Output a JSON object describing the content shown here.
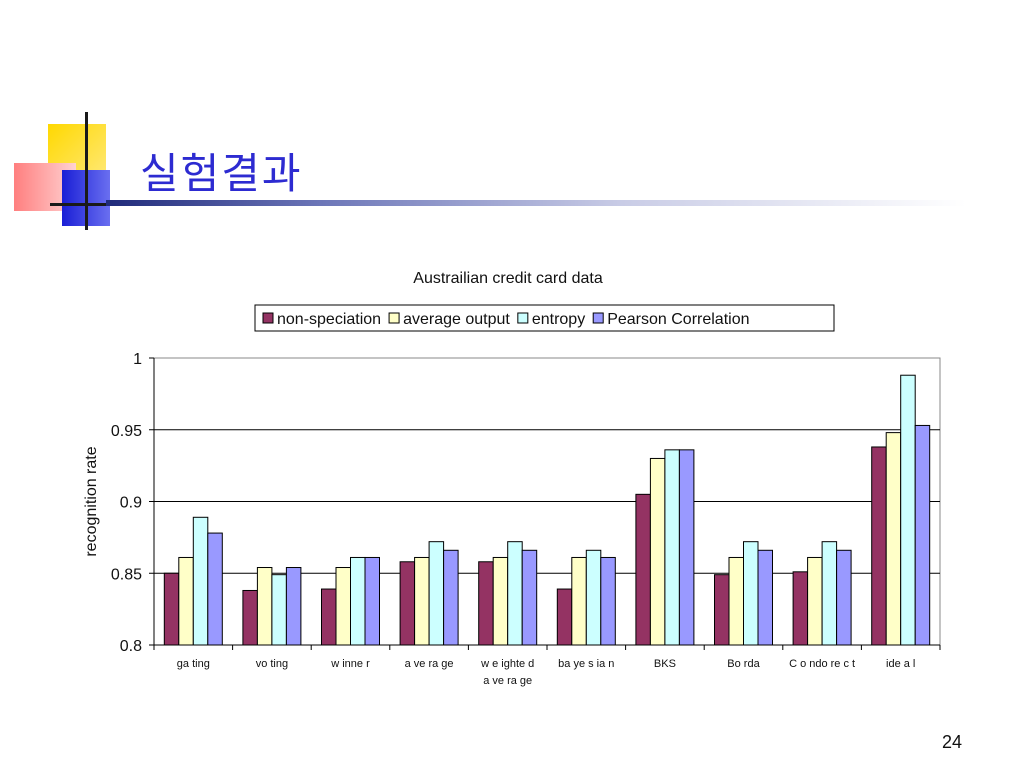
{
  "slide": {
    "title": "실험결과",
    "page_number": "24"
  },
  "colors": {
    "title": "#2d2bd1",
    "series": [
      "#943363",
      "#ffffc8",
      "#ccffff",
      "#9999ff"
    ]
  },
  "chart_data": {
    "type": "bar",
    "title": "Austrailian credit card data",
    "xlabel": "",
    "ylabel": "recognition rate",
    "ylim": [
      0.8,
      1
    ],
    "yticks": [
      0.8,
      0.85,
      0.9,
      0.95,
      1
    ],
    "ytick_labels": [
      "0.8",
      "0.85",
      "0.9",
      "0.95",
      "1"
    ],
    "grid": true,
    "legend_position": "top",
    "categories": [
      "ga ting",
      "vo ting",
      "w inne r",
      "a ve ra ge",
      "w e ighte d\na ve ra ge",
      "ba ye s ia n",
      "BKS",
      "Bo rda",
      "C o ndo re c t",
      "ide a l"
    ],
    "series": [
      {
        "name": "non-speciation",
        "values": [
          0.85,
          0.838,
          0.839,
          0.858,
          0.858,
          0.839,
          0.905,
          0.849,
          0.851,
          0.938
        ]
      },
      {
        "name": "average output",
        "values": [
          0.861,
          0.854,
          0.854,
          0.861,
          0.861,
          0.861,
          0.93,
          0.861,
          0.861,
          0.948
        ]
      },
      {
        "name": "entropy",
        "values": [
          0.889,
          0.849,
          0.861,
          0.872,
          0.872,
          0.866,
          0.936,
          0.872,
          0.872,
          0.988
        ]
      },
      {
        "name": "Pearson Correlation",
        "values": [
          0.878,
          0.854,
          0.861,
          0.866,
          0.866,
          0.861,
          0.936,
          0.866,
          0.866,
          0.953
        ]
      }
    ]
  }
}
